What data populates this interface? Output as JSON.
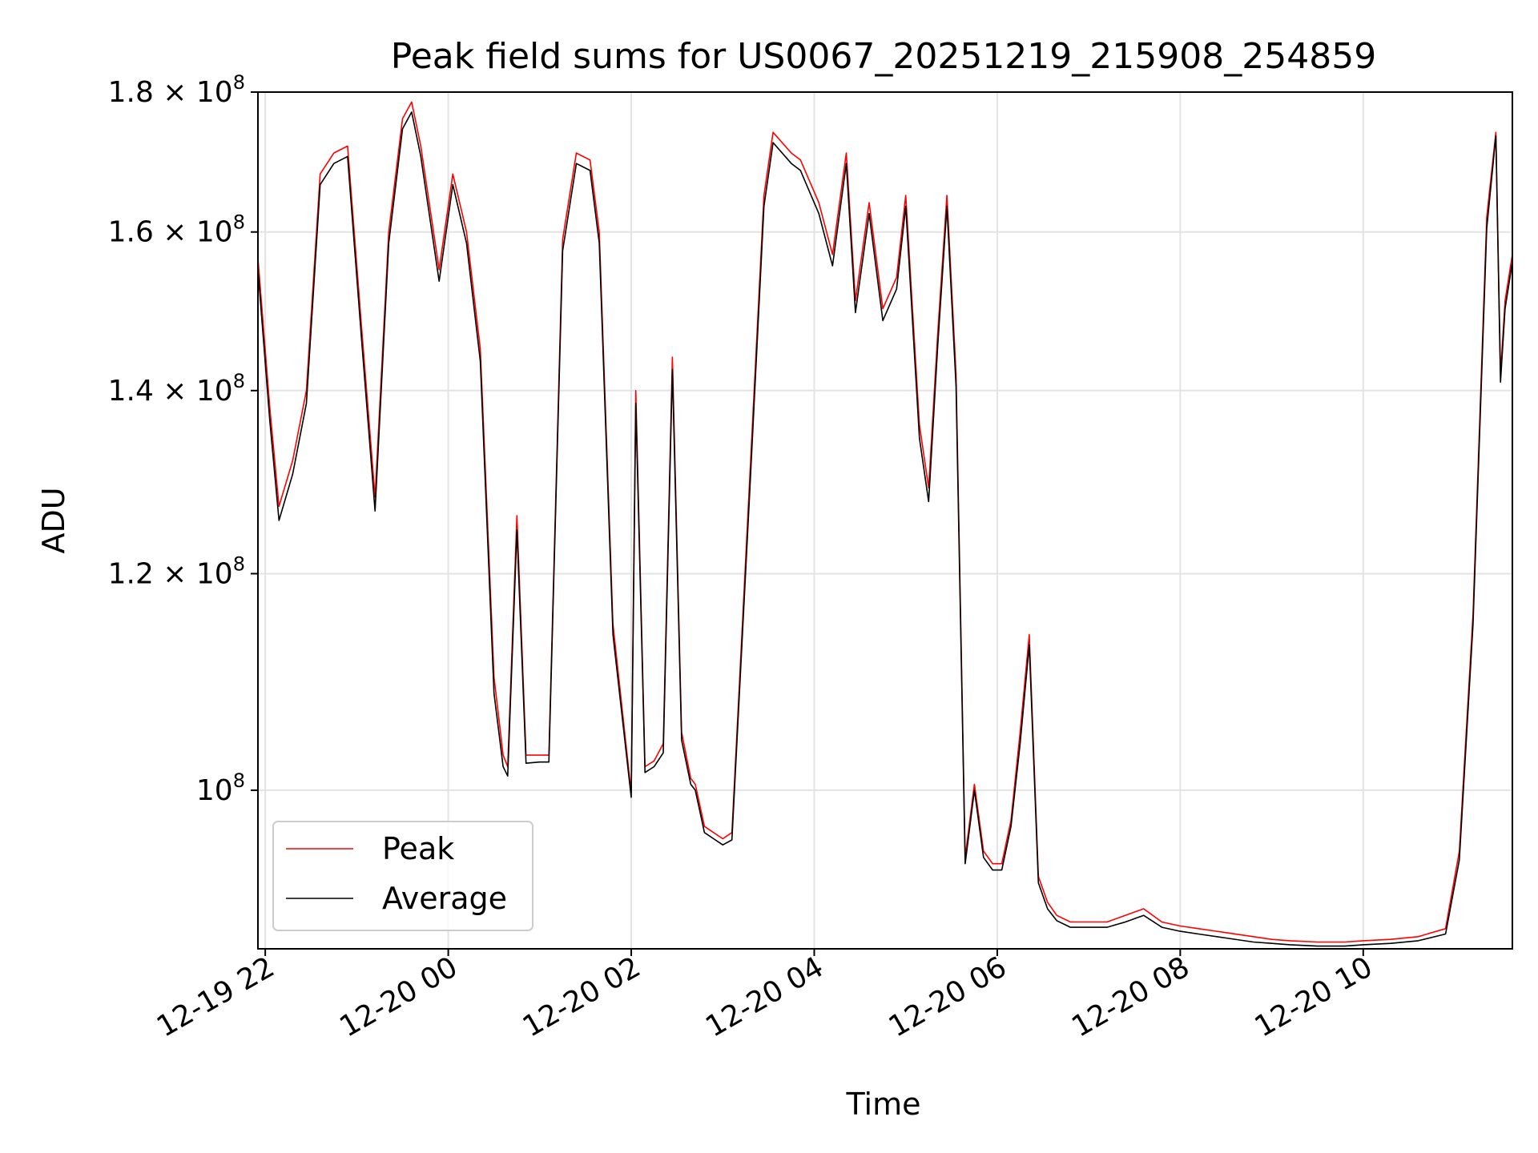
{
  "chart_data": {
    "type": "line",
    "title": "Peak field sums for US0067_20251219_215908_254859",
    "xlabel": "Time",
    "ylabel": "ADU",
    "yscale": "log",
    "ylim": [
      87500000,
      180000000
    ],
    "xlim_hours": [
      21.92,
      35.63
    ],
    "grid": true,
    "legend_position": "lower-left",
    "x_ticks": [
      {
        "hour": 22,
        "label": "12-19 22"
      },
      {
        "hour": 24,
        "label": "12-20 00"
      },
      {
        "hour": 26,
        "label": "12-20 02"
      },
      {
        "hour": 28,
        "label": "12-20 04"
      },
      {
        "hour": 30,
        "label": "12-20 06"
      },
      {
        "hour": 32,
        "label": "12-20 08"
      },
      {
        "hour": 34,
        "label": "12-20 10"
      }
    ],
    "y_ticks": [
      {
        "value": 100000000,
        "mantissa": "",
        "exp": "8"
      },
      {
        "value": 120000000,
        "mantissa": "1.2",
        "exp": "8"
      },
      {
        "value": 140000000,
        "mantissa": "1.4",
        "exp": "8"
      },
      {
        "value": 160000000,
        "mantissa": "1.6",
        "exp": "8"
      },
      {
        "value": 180000000,
        "mantissa": "1.8",
        "exp": "8"
      }
    ],
    "x_hours": [
      21.92,
      22.05,
      22.15,
      22.3,
      22.45,
      22.6,
      22.75,
      22.9,
      23.05,
      23.2,
      23.35,
      23.5,
      23.6,
      23.7,
      23.9,
      24.05,
      24.2,
      24.35,
      24.5,
      24.6,
      24.65,
      24.75,
      24.85,
      25.0,
      25.1,
      25.25,
      25.4,
      25.55,
      25.65,
      25.8,
      26.0,
      26.05,
      26.15,
      26.25,
      26.35,
      26.45,
      26.55,
      26.65,
      26.7,
      26.8,
      26.9,
      27.0,
      27.1,
      27.3,
      27.45,
      27.55,
      27.75,
      27.85,
      28.05,
      28.2,
      28.35,
      28.45,
      28.6,
      28.75,
      28.9,
      29.0,
      29.1,
      29.15,
      29.25,
      29.35,
      29.45,
      29.55,
      29.65,
      29.75,
      29.85,
      29.95,
      30.05,
      30.15,
      30.25,
      30.35,
      30.45,
      30.55,
      30.65,
      30.8,
      31.0,
      31.2,
      31.4,
      31.6,
      31.8,
      32.0,
      32.2,
      32.5,
      32.8,
      33.0,
      33.2,
      33.5,
      33.8,
      34.0,
      34.3,
      34.6,
      34.9,
      35.05,
      35.2,
      35.35,
      35.45,
      35.5,
      35.55,
      35.63
    ],
    "series": [
      {
        "name": "Peak",
        "color": "#ff0000",
        "values": [
          156500000,
          138000000,
          127000000,
          132000000,
          140000000,
          168000000,
          171000000,
          172000000,
          148000000,
          128000000,
          160000000,
          176000000,
          178500000,
          172000000,
          155000000,
          168000000,
          160000000,
          145000000,
          110000000,
          103000000,
          102000000,
          126000000,
          103000000,
          103000000,
          103000000,
          159000000,
          171000000,
          170000000,
          160000000,
          115000000,
          99800000,
          140000000,
          102000000,
          102500000,
          104000000,
          144000000,
          105000000,
          101000000,
          100500000,
          97000000,
          96500000,
          96000000,
          96500000,
          131000000,
          165000000,
          174000000,
          171000000,
          170000000,
          164000000,
          157000000,
          171000000,
          151000000,
          164000000,
          150000000,
          154000000,
          165000000,
          145000000,
          136000000,
          129000000,
          147000000,
          165000000,
          142000000,
          94500000,
          100500000,
          95000000,
          94000000,
          94000000,
          97500000,
          105000000,
          114000000,
          93000000,
          91000000,
          90000000,
          89500000,
          89500000,
          89500000,
          90000000,
          90500000,
          89500000,
          89200000,
          89000000,
          88700000,
          88400000,
          88200000,
          88100000,
          88000000,
          88000000,
          88100000,
          88200000,
          88400000,
          89000000,
          95000000,
          116000000,
          162000000,
          174000000,
          142000000,
          151000000,
          157000000
        ]
      },
      {
        "name": "Average",
        "color": "#000000",
        "values": [
          155000000,
          136500000,
          125500000,
          130500000,
          138500000,
          166500000,
          169500000,
          170500000,
          146500000,
          126500000,
          158500000,
          174500000,
          177000000,
          170500000,
          153500000,
          166500000,
          158500000,
          143500000,
          108500000,
          102000000,
          101200000,
          124500000,
          102300000,
          102400000,
          102400000,
          157500000,
          169500000,
          168500000,
          158500000,
          114000000,
          99400000,
          138500000,
          101500000,
          102000000,
          103200000,
          142500000,
          104300000,
          100500000,
          100000000,
          96500000,
          96000000,
          95500000,
          95900000,
          129500000,
          163500000,
          172500000,
          169500000,
          168500000,
          162500000,
          155500000,
          169500000,
          149500000,
          162500000,
          148500000,
          152500000,
          163500000,
          143500000,
          134500000,
          127500000,
          145500000,
          163500000,
          140500000,
          94000000,
          100000000,
          94500000,
          93500000,
          93500000,
          97000000,
          104000000,
          113000000,
          92500000,
          90500000,
          89600000,
          89100000,
          89100000,
          89100000,
          89500000,
          90000000,
          89100000,
          88800000,
          88600000,
          88300000,
          88000000,
          87900000,
          87800000,
          87700000,
          87700000,
          87800000,
          87900000,
          88100000,
          88600000,
          94300000,
          115000000,
          160500000,
          173500000,
          141000000,
          150000000,
          156000000
        ]
      }
    ],
    "legend": [
      {
        "label": "Peak",
        "color": "#ff0000"
      },
      {
        "label": "Average",
        "color": "#000000"
      }
    ]
  }
}
